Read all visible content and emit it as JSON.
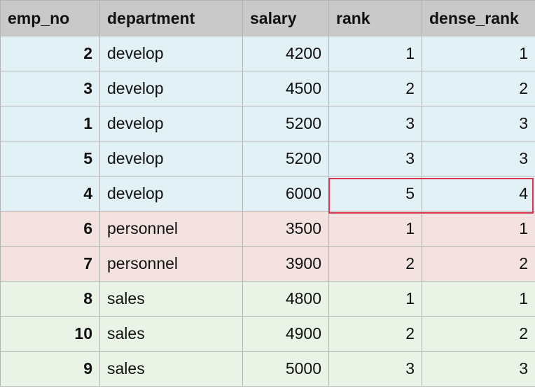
{
  "columns": [
    "emp_no",
    "department",
    "salary",
    "rank",
    "dense_rank"
  ],
  "rows": [
    {
      "emp_no": "2",
      "department": "develop",
      "salary": "4200",
      "rank": "1",
      "dense_rank": "1"
    },
    {
      "emp_no": "3",
      "department": "develop",
      "salary": "4500",
      "rank": "2",
      "dense_rank": "2"
    },
    {
      "emp_no": "1",
      "department": "develop",
      "salary": "5200",
      "rank": "3",
      "dense_rank": "3"
    },
    {
      "emp_no": "5",
      "department": "develop",
      "salary": "5200",
      "rank": "3",
      "dense_rank": "3"
    },
    {
      "emp_no": "4",
      "department": "develop",
      "salary": "6000",
      "rank": "5",
      "dense_rank": "4"
    },
    {
      "emp_no": "6",
      "department": "personnel",
      "salary": "3500",
      "rank": "1",
      "dense_rank": "1"
    },
    {
      "emp_no": "7",
      "department": "personnel",
      "salary": "3900",
      "rank": "2",
      "dense_rank": "2"
    },
    {
      "emp_no": "8",
      "department": "sales",
      "salary": "4800",
      "rank": "1",
      "dense_rank": "1"
    },
    {
      "emp_no": "10",
      "department": "sales",
      "salary": "4900",
      "rank": "2",
      "dense_rank": "2"
    },
    {
      "emp_no": "9",
      "department": "sales",
      "salary": "5000",
      "rank": "3",
      "dense_rank": "3"
    }
  ],
  "colors": {
    "header_bg": "#c9c9c9",
    "develop_bg": "#e1f1f5",
    "personnel_bg": "#f4e2e0",
    "sales_bg": "#eaf4e6",
    "highlight_border": "#d9364d",
    "grid_line": "#b3b3b3"
  },
  "highlighted_row_index": 4,
  "highlighted_columns": [
    "rank",
    "dense_rank"
  ]
}
